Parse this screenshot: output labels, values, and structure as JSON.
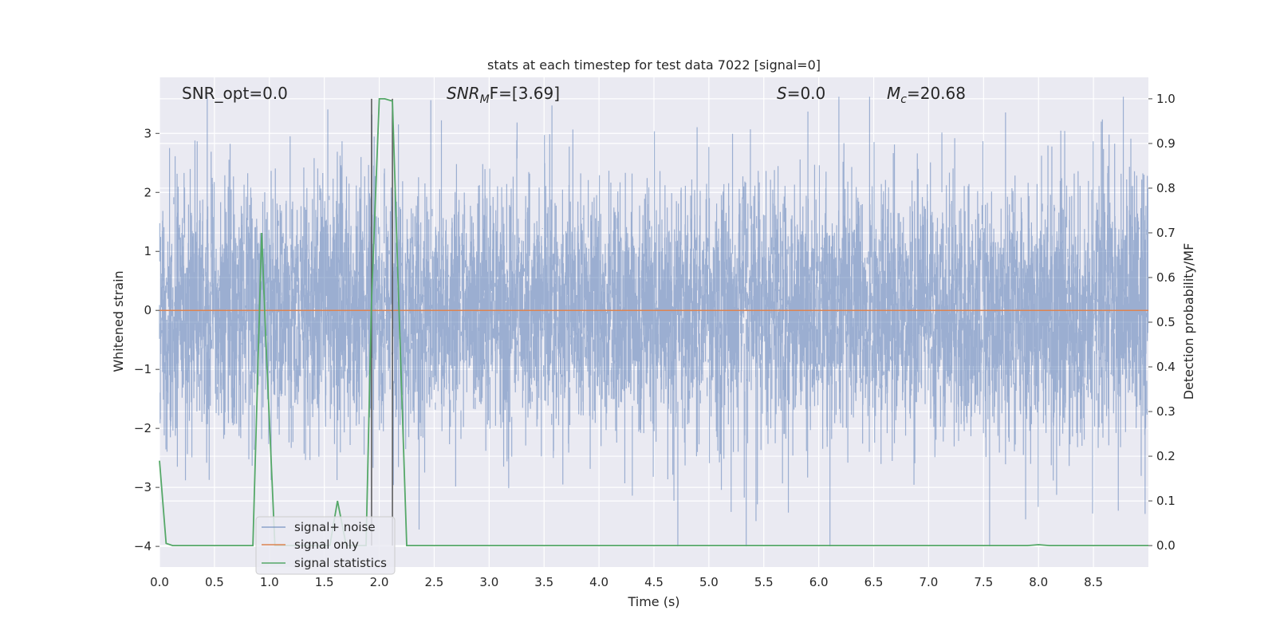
{
  "chart_data": {
    "type": "line",
    "title": "stats at each timestep for test data 7022 [signal=0]",
    "xlabel": "Time (s)",
    "ylabel": "Whitened strain",
    "y2label": "Detection probability/MF",
    "xlim": [
      0.0,
      9.0
    ],
    "ylim": [
      -4.35,
      3.95
    ],
    "y2lim": [
      -0.048,
      1.048
    ],
    "xticks": [
      "0.0",
      "0.5",
      "1.0",
      "1.5",
      "2.0",
      "2.5",
      "3.0",
      "3.5",
      "4.0",
      "4.5",
      "5.0",
      "5.5",
      "6.0",
      "6.5",
      "7.0",
      "7.5",
      "8.0",
      "8.5"
    ],
    "yticks": [
      "3",
      "2",
      "1",
      "0",
      "−1",
      "−2",
      "−3",
      "−4"
    ],
    "y2ticks": [
      "1.0",
      "0.9",
      "0.8",
      "0.7",
      "0.6",
      "0.5",
      "0.4",
      "0.3",
      "0.2",
      "0.1",
      "0.0"
    ],
    "grid": true,
    "legend_position": "lower-left",
    "annotations": {
      "snr_opt": "SNR_opt=0.0",
      "snr_mf_main": "SNR",
      "snr_mf_sub": "M",
      "snr_mf_rest": "F=[3.69]",
      "s_main": "S",
      "s_rest": "=0.0",
      "mc_main": "M",
      "mc_sub": "c",
      "mc_rest": "=20.68"
    },
    "vertical_lines_x": [
      1.93,
      2.12
    ],
    "series": [
      {
        "name": "signal+ noise",
        "color": "#4c72b0",
        "description_values": "dense whitened noise, roughly Gaussian with std ~1, range approx [-4.0, 3.6]",
        "sample_rate_hz": 2048,
        "duration_s": 9.0
      },
      {
        "name": "signal only",
        "color": "#dd8452",
        "x": [
          0.0,
          9.0
        ],
        "y": [
          0.0,
          0.0
        ]
      },
      {
        "name": "signal statistics",
        "color": "#55a868",
        "axis": "right",
        "x": [
          0.0,
          0.06,
          0.12,
          0.5,
          0.85,
          0.93,
          0.97,
          1.05,
          1.12,
          1.55,
          1.62,
          1.7,
          1.88,
          1.93,
          2.0,
          2.05,
          2.12,
          2.17,
          2.25,
          3.0,
          4.0,
          5.0,
          6.0,
          7.0,
          7.9,
          8.0,
          8.1,
          9.0
        ],
        "y": [
          0.19,
          0.005,
          0.0,
          0.0,
          0.0,
          0.7,
          0.45,
          0.0,
          0.0,
          0.0,
          0.1,
          0.0,
          0.0,
          0.55,
          1.0,
          1.0,
          0.995,
          0.6,
          0.0,
          0.0,
          0.0,
          0.0,
          0.0,
          0.0,
          0.0,
          0.002,
          0.0,
          0.0
        ]
      }
    ]
  },
  "colors": {
    "plot_bg": "#eaeaf2",
    "grid": "#ffffff",
    "vline": "#555555"
  }
}
